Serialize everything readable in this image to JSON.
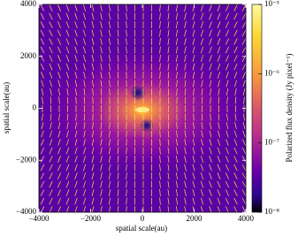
{
  "chart_data": {
    "type": "heatmap",
    "xlabel": "spatial scale(au)",
    "ylabel": "spatial scale(au)",
    "xlim": [
      -4000,
      4000
    ],
    "ylim": [
      -4000,
      4000
    ],
    "xticks": [
      {
        "value": -4000,
        "label": "−4000"
      },
      {
        "value": -2000,
        "label": "−2000"
      },
      0,
      2000,
      4000
    ],
    "yticks": [
      {
        "value": -4000,
        "label": "−4000"
      },
      {
        "value": -2000,
        "label": "−2000"
      },
      0,
      2000,
      4000
    ],
    "colorbar": {
      "label": "Polarized flux density (Jy pixel⁻¹)",
      "scale": "log",
      "range": [
        1e-08,
        1e-05
      ],
      "ticks": [
        {
          "value": 1e-08,
          "label": "10⁻⁸"
        },
        {
          "value": 1e-07,
          "label": "10⁻⁷"
        },
        {
          "value": 1e-06,
          "label": "10⁻⁶"
        },
        {
          "value": 1e-05,
          "label": "10⁻⁵"
        }
      ]
    }
  }
}
